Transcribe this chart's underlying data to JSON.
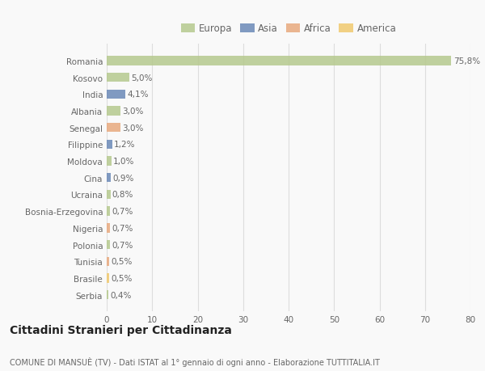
{
  "categories": [
    "Romania",
    "Kosovo",
    "India",
    "Albania",
    "Senegal",
    "Filippine",
    "Moldova",
    "Cina",
    "Ucraina",
    "Bosnia-Erzegovina",
    "Nigeria",
    "Polonia",
    "Tunisia",
    "Brasile",
    "Serbia"
  ],
  "values": [
    75.8,
    5.0,
    4.1,
    3.0,
    3.0,
    1.2,
    1.0,
    0.9,
    0.8,
    0.7,
    0.7,
    0.7,
    0.5,
    0.5,
    0.4
  ],
  "labels": [
    "75,8%",
    "5,0%",
    "4,1%",
    "3,0%",
    "3,0%",
    "1,2%",
    "1,0%",
    "0,9%",
    "0,8%",
    "0,7%",
    "0,7%",
    "0,7%",
    "0,5%",
    "0,5%",
    "0,4%"
  ],
  "colors": [
    "#b5c98e",
    "#b5c98e",
    "#6b89b8",
    "#b5c98e",
    "#e8a97e",
    "#6b89b8",
    "#b5c98e",
    "#6b89b8",
    "#b5c98e",
    "#b5c98e",
    "#e8a97e",
    "#b5c98e",
    "#e8a97e",
    "#f0c96e",
    "#b5c98e"
  ],
  "legend": [
    {
      "label": "Europa",
      "color": "#b5c98e"
    },
    {
      "label": "Asia",
      "color": "#6b89b8"
    },
    {
      "label": "Africa",
      "color": "#e8a97e"
    },
    {
      "label": "America",
      "color": "#f0c96e"
    }
  ],
  "xlim": [
    0,
    80
  ],
  "xticks": [
    0,
    10,
    20,
    30,
    40,
    50,
    60,
    70,
    80
  ],
  "title": "Cittadini Stranieri per Cittadinanza",
  "subtitle": "COMUNE DI MANSUÈ (TV) - Dati ISTAT al 1° gennaio di ogni anno - Elaborazione TUTTITALIA.IT",
  "background_color": "#f9f9f9",
  "grid_color": "#dddddd",
  "text_color": "#666666",
  "bar_height": 0.55,
  "label_fontsize": 7.5,
  "tick_fontsize": 7.5,
  "title_fontsize": 10,
  "subtitle_fontsize": 7
}
